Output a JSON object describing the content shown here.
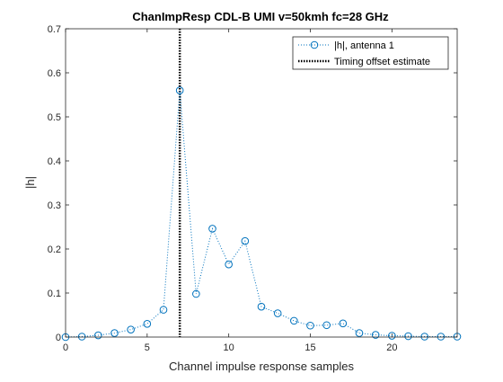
{
  "chart_data": {
    "type": "line",
    "title": "ChanImpResp CDL-B UMI v=50kmh fc=28 GHz",
    "xlabel": "Channel impulse response samples",
    "ylabel": "|h|",
    "xlim": [
      0,
      24
    ],
    "ylim": [
      0,
      0.7
    ],
    "x_ticks": [
      0,
      5,
      10,
      15,
      20
    ],
    "y_ticks": [
      0,
      0.1,
      0.2,
      0.3,
      0.4,
      0.5,
      0.6,
      0.7
    ],
    "x_tick_labels": [
      "0",
      "5",
      "10",
      "15",
      "20"
    ],
    "y_tick_labels": [
      "0",
      "0.1",
      "0.2",
      "0.3",
      "0.4",
      "0.5",
      "0.6",
      "0.7"
    ],
    "grid": false,
    "legend_position": "top-right",
    "series": [
      {
        "name": "|h|, antenna 1",
        "style": "dotted line with circle markers",
        "color": "#0072BD",
        "x": [
          0,
          1,
          2,
          3,
          4,
          5,
          6,
          7,
          8,
          9,
          10,
          11,
          12,
          13,
          14,
          15,
          16,
          17,
          18,
          19,
          20,
          21,
          22,
          23,
          24
        ],
        "values": [
          0.0,
          0.001,
          0.004,
          0.009,
          0.017,
          0.03,
          0.062,
          0.56,
          0.098,
          0.246,
          0.165,
          0.218,
          0.069,
          0.054,
          0.037,
          0.026,
          0.027,
          0.031,
          0.009,
          0.005,
          0.003,
          0.002,
          0.001,
          0.001,
          0.001
        ]
      }
    ],
    "markers": [
      {
        "name": "Timing offset estimate",
        "type": "vertical_line",
        "style": "dotted",
        "color": "#000000",
        "x": 7
      }
    ]
  }
}
